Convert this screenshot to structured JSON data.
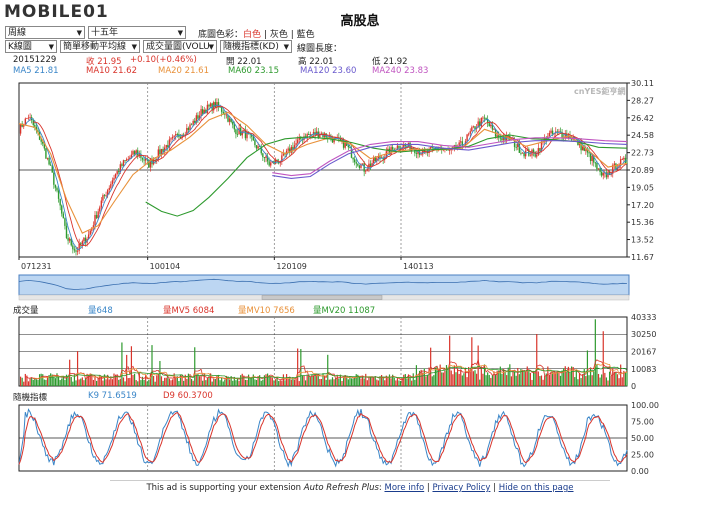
{
  "logo": {
    "text": "MOBILE01"
  },
  "title": "高股息",
  "controls": {
    "period": "周線",
    "range": "十五年",
    "chart_type": "K線圖",
    "ma_type": "簡單移動平均線",
    "volume": "成交量圖(VOLU",
    "indicator": "隨機指標(KD)",
    "bg_label": "底圖色彩：",
    "bg_white": "白色",
    "bg_gray": "灰色",
    "bg_blue": "藍色",
    "sep": "|",
    "line_len_label": "線圖長度："
  },
  "info": {
    "date": "20151229",
    "close": "收 21.95",
    "change": "+0.10(+0.46%)",
    "open": "開 22.01",
    "high": "高 22.01",
    "low": "低 21.92",
    "ma5": "MA5 21.81",
    "ma10": "MA10 21.62",
    "ma20": "MA20 21.61",
    "ma60": "MA60 23.15",
    "ma120": "MA120 23.60",
    "ma240": "MA240 23.83"
  },
  "watermark": "cnYES鉅亨網",
  "volume_info": {
    "label": "成交量",
    "vol": "量648",
    "mv5": "量MV5 6084",
    "mv10": "量MV10 7656",
    "mv20": "量MV20 11087"
  },
  "kd_info": {
    "label": "隨機指標",
    "k": "K9 71.6519",
    "d": "D9 60.3700"
  },
  "ad": {
    "text": "This ad is supporting your extension",
    "ext": "Auto Refresh Plus",
    "more": "More info",
    "privacy": "Privacy Policy",
    "hide": "Hide on this page",
    "sep": "|"
  },
  "colors": {
    "up": "#d9342b",
    "down": "#2e9a2e",
    "ma5": "#3a86c8",
    "ma10": "#d9342b",
    "ma20": "#e8913a",
    "ma60": "#2e9a2e",
    "ma120": "#6a5acd",
    "ma240": "#c055c0"
  },
  "chart_data": [
    {
      "type": "candlestick",
      "title": "",
      "x_ticks": [
        "071231",
        "100104",
        "120109",
        "140113"
      ],
      "y_ticks": [
        30.11,
        28.27,
        26.42,
        24.58,
        22.73,
        20.89,
        19.05,
        17.2,
        15.36,
        13.52,
        11.67
      ],
      "ylim": [
        11.67,
        30.11
      ],
      "reference_line": 20.89,
      "series_path": [
        [
          0,
          25.2
        ],
        [
          6,
          26.6
        ],
        [
          14,
          24.0
        ],
        [
          20,
          21.0
        ],
        [
          26,
          17.0
        ],
        [
          30,
          13.8
        ],
        [
          36,
          12.3
        ],
        [
          44,
          14.0
        ],
        [
          52,
          17.5
        ],
        [
          60,
          20.2
        ],
        [
          66,
          21.6
        ],
        [
          74,
          22.8
        ],
        [
          82,
          21.5
        ],
        [
          90,
          23.0
        ],
        [
          98,
          24.2
        ],
        [
          108,
          25.5
        ],
        [
          116,
          27.2
        ],
        [
          124,
          27.8
        ],
        [
          130,
          27.0
        ],
        [
          136,
          25.2
        ],
        [
          144,
          24.6
        ],
        [
          152,
          23.0
        ],
        [
          158,
          21.5
        ],
        [
          166,
          22.0
        ],
        [
          172,
          23.2
        ],
        [
          180,
          24.5
        ],
        [
          190,
          24.8
        ],
        [
          198,
          24.2
        ],
        [
          206,
          23.6
        ],
        [
          212,
          22.1
        ],
        [
          218,
          21.0
        ],
        [
          224,
          21.8
        ],
        [
          232,
          22.6
        ],
        [
          240,
          23.5
        ],
        [
          248,
          23.3
        ],
        [
          256,
          22.6
        ],
        [
          264,
          23.2
        ],
        [
          272,
          22.8
        ],
        [
          280,
          23.6
        ],
        [
          288,
          25.5
        ],
        [
          294,
          26.3
        ],
        [
          302,
          24.4
        ],
        [
          310,
          24.2
        ],
        [
          318,
          22.8
        ],
        [
          326,
          22.6
        ],
        [
          334,
          24.6
        ],
        [
          342,
          24.8
        ],
        [
          350,
          24.3
        ],
        [
          356,
          23.2
        ],
        [
          362,
          22.0
        ],
        [
          368,
          20.1
        ],
        [
          372,
          20.5
        ],
        [
          378,
          21.5
        ],
        [
          384,
          21.9
        ]
      ],
      "ma_paths": {
        "ma20": [
          [
            0,
            25.8
          ],
          [
            10,
            25.4
          ],
          [
            20,
            22.6
          ],
          [
            30,
            17.8
          ],
          [
            40,
            14.2
          ],
          [
            50,
            15.0
          ],
          [
            60,
            17.5
          ],
          [
            72,
            20.4
          ],
          [
            84,
            22.0
          ],
          [
            96,
            23.0
          ],
          [
            108,
            24.4
          ],
          [
            120,
            26.2
          ],
          [
            132,
            27.0
          ],
          [
            144,
            25.6
          ],
          [
            156,
            23.6
          ],
          [
            168,
            22.6
          ],
          [
            182,
            23.6
          ],
          [
            196,
            24.3
          ],
          [
            210,
            23.6
          ],
          [
            222,
            22.1
          ],
          [
            236,
            22.8
          ],
          [
            250,
            23.1
          ],
          [
            264,
            23.0
          ],
          [
            280,
            23.2
          ],
          [
            294,
            25.2
          ],
          [
            308,
            24.4
          ],
          [
            320,
            23.4
          ],
          [
            334,
            24.0
          ],
          [
            348,
            24.5
          ],
          [
            360,
            22.9
          ],
          [
            372,
            21.2
          ],
          [
            384,
            21.6
          ]
        ],
        "ma60": [
          [
            80,
            17.5
          ],
          [
            90,
            16.5
          ],
          [
            100,
            16.0
          ],
          [
            110,
            16.6
          ],
          [
            120,
            18.0
          ],
          [
            132,
            20.0
          ],
          [
            144,
            22.2
          ],
          [
            156,
            23.6
          ],
          [
            168,
            24.2
          ],
          [
            182,
            24.4
          ],
          [
            196,
            24.2
          ],
          [
            210,
            23.8
          ],
          [
            224,
            23.2
          ],
          [
            240,
            22.8
          ],
          [
            256,
            23.0
          ],
          [
            270,
            23.1
          ],
          [
            284,
            23.4
          ],
          [
            296,
            24.2
          ],
          [
            310,
            24.6
          ],
          [
            324,
            24.2
          ],
          [
            338,
            24.1
          ],
          [
            352,
            23.9
          ],
          [
            366,
            23.3
          ],
          [
            384,
            23.2
          ]
        ],
        "ma120": [
          [
            160,
            20.3
          ],
          [
            172,
            20.0
          ],
          [
            184,
            20.2
          ],
          [
            196,
            21.5
          ],
          [
            208,
            22.6
          ],
          [
            222,
            23.3
          ],
          [
            236,
            23.6
          ],
          [
            252,
            23.6
          ],
          [
            268,
            23.2
          ],
          [
            284,
            23.0
          ],
          [
            298,
            23.4
          ],
          [
            312,
            23.8
          ],
          [
            326,
            24.0
          ],
          [
            340,
            24.0
          ],
          [
            354,
            23.9
          ],
          [
            370,
            23.7
          ],
          [
            384,
            23.6
          ]
        ]
      }
    },
    {
      "type": "bar",
      "title": "成交量",
      "y_ticks": [
        40333,
        30250,
        20167,
        10083,
        0
      ],
      "ylim": [
        0,
        40333
      ]
    },
    {
      "type": "line",
      "title": "隨機指標",
      "y_ticks": [
        100.0,
        75.0,
        50.0,
        25.0,
        0.0
      ],
      "ylim": [
        0,
        100
      ],
      "reference_line": 50.0
    }
  ]
}
